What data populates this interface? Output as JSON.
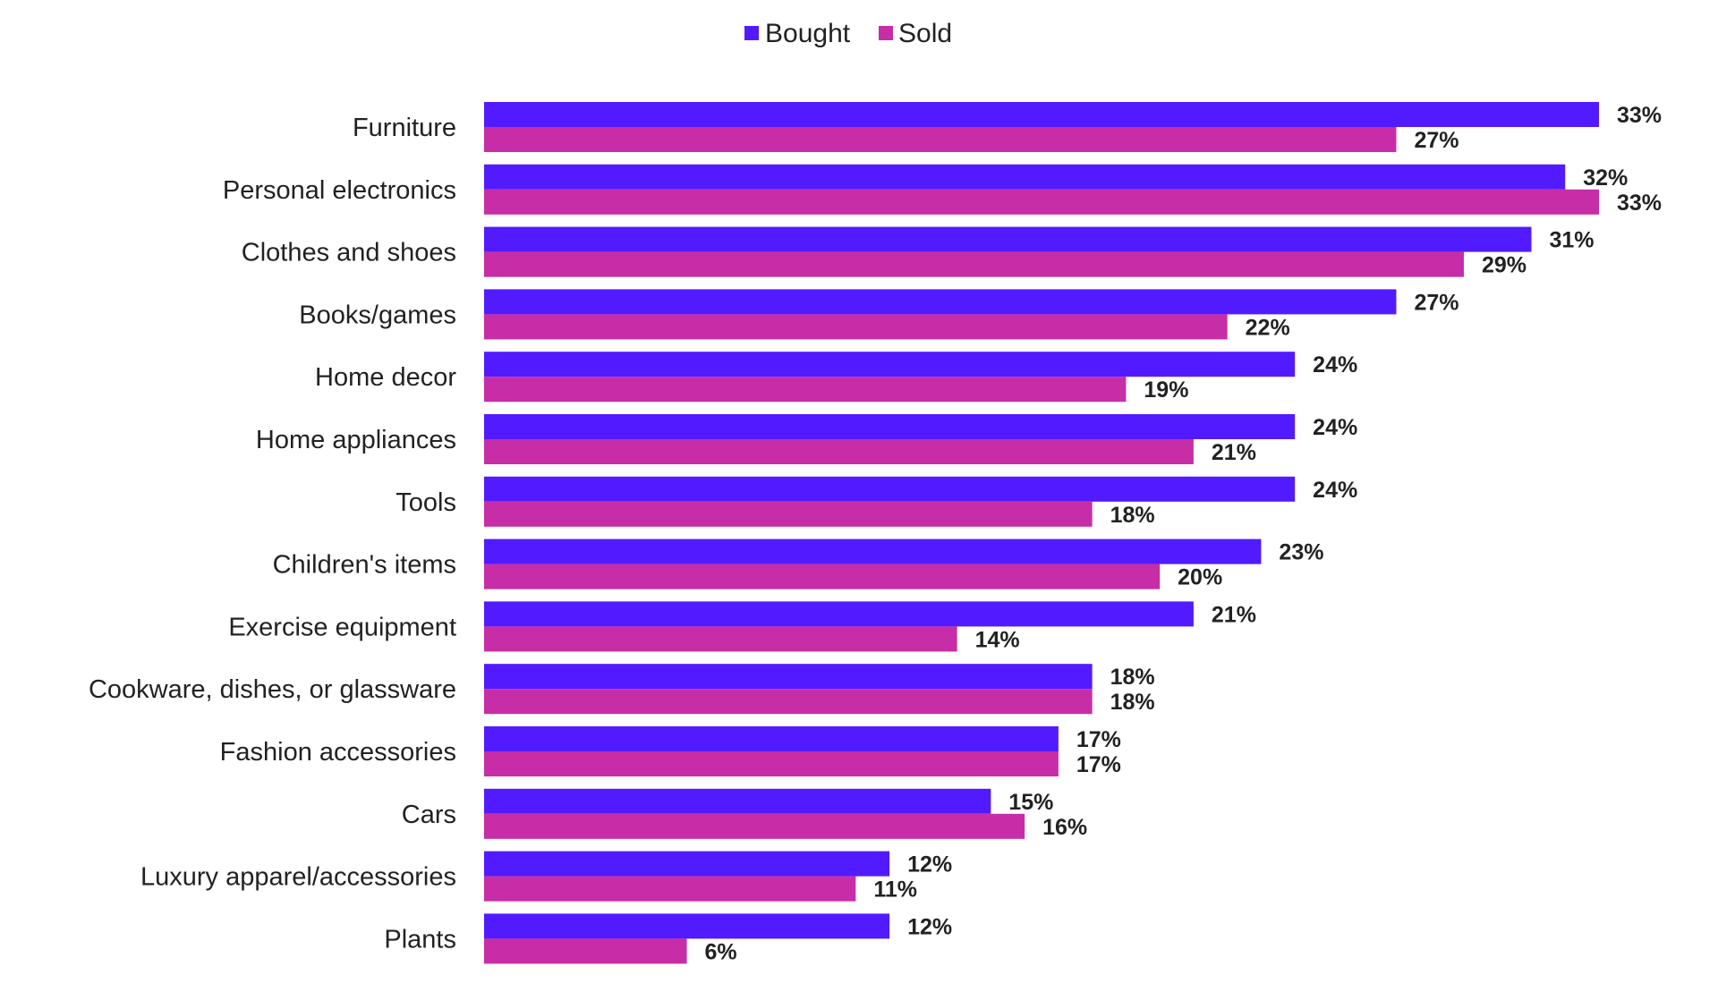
{
  "chart_data": {
    "type": "bar",
    "orientation": "horizontal",
    "categories": [
      "Furniture",
      "Personal electronics",
      "Clothes and shoes",
      "Books/games",
      "Home decor",
      "Home appliances",
      "Tools",
      "Children's items",
      "Exercise equipment",
      "Cookware, dishes, or glassware",
      "Fashion accessories",
      "Cars",
      "Luxury apparel/accessories",
      "Plants"
    ],
    "series": [
      {
        "name": "Bought",
        "color": "#521BFF",
        "values": [
          33,
          32,
          31,
          27,
          24,
          24,
          24,
          23,
          21,
          18,
          17,
          15,
          12,
          12
        ],
        "labels": [
          "33%",
          "32%",
          "31%",
          "27%",
          "24%",
          "24%",
          "24%",
          "23%",
          "21%",
          "18%",
          "17%",
          "15%",
          "12%",
          "12%"
        ]
      },
      {
        "name": "Sold",
        "color": "#C72DA6",
        "values": [
          27,
          33,
          29,
          22,
          19,
          21,
          18,
          20,
          14,
          18,
          17,
          16,
          11,
          6
        ],
        "labels": [
          "27%",
          "33%",
          "29%",
          "22%",
          "19%",
          "21%",
          "18%",
          "20%",
          "14%",
          "18%",
          "17%",
          "16%",
          "11%",
          "6%"
        ]
      }
    ],
    "title": "",
    "xlabel": "",
    "ylabel": "",
    "xlim": [
      0,
      33
    ],
    "unit": "%",
    "grid": false,
    "legend": "top-center",
    "data_labels": true
  }
}
